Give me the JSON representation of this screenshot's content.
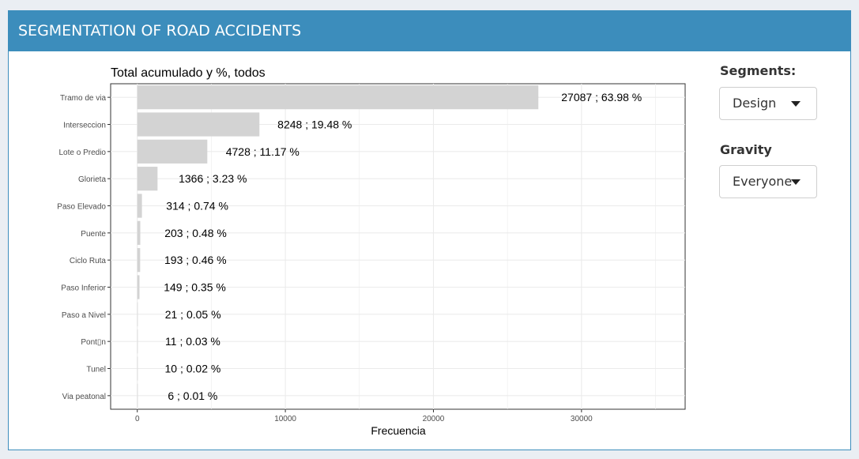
{
  "header": {
    "title": "SEGMENTATION OF ROAD ACCIDENTS"
  },
  "controls": {
    "segments_label": "Segments:",
    "segments_value": "Design",
    "gravity_label": "Gravity",
    "gravity_value": "Everyone"
  },
  "colors": {
    "header_bg": "#3c8dbc",
    "bar_fill": "#d3d3d3",
    "grid": "#ebebeb",
    "page_bg": "#eaeef3"
  },
  "chart_data": {
    "type": "bar",
    "orientation": "horizontal",
    "title": "Total acumulado y %, todos",
    "xlabel": "Frecuencia",
    "ylabel": "",
    "xlim": [
      -1800,
      37000
    ],
    "xticks": [
      0,
      10000,
      20000,
      30000
    ],
    "grid": true,
    "categories": [
      "Tramo de via",
      "Interseccion",
      "Lote o Predio",
      "Glorieta",
      "Paso Elevado",
      "Puente",
      "Ciclo Ruta",
      "Paso Inferior",
      "Paso a Nivel",
      "Pont▯n",
      "Tunel",
      "Via peatonal"
    ],
    "values": [
      27087,
      8248,
      4728,
      1366,
      314,
      203,
      193,
      149,
      21,
      11,
      10,
      6
    ],
    "data_labels": [
      "27087 ; 63.98 %",
      "8248 ; 19.48 %",
      "4728 ; 11.17 %",
      "1366 ; 3.23 %",
      "314 ; 0.74 %",
      "203 ; 0.48 %",
      "193 ; 0.46 %",
      "149 ; 0.35 %",
      "21 ; 0.05 %",
      "11 ; 0.03 %",
      "10 ; 0.02 %",
      "6 ; 0.01 %"
    ]
  }
}
